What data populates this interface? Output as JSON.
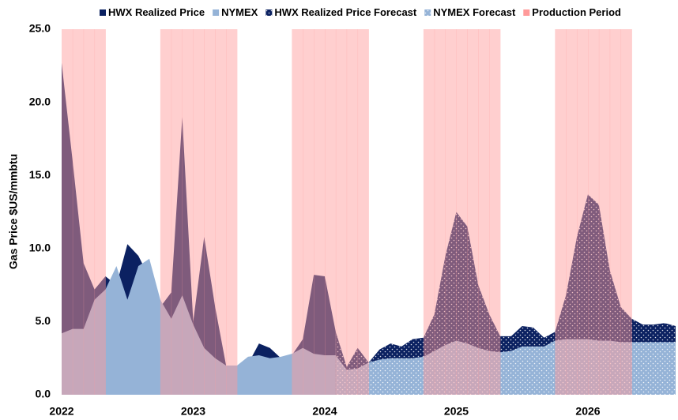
{
  "chart_data": {
    "type": "area",
    "y_label": "Gas Price $US/mmbtu",
    "legend": "top",
    "categories": [
      "2022",
      null,
      null,
      null,
      null,
      null,
      null,
      null,
      null,
      null,
      null,
      null,
      "2023",
      null,
      null,
      null,
      null,
      null,
      null,
      null,
      null,
      null,
      null,
      null,
      "2024",
      null,
      null,
      null,
      null,
      null,
      null,
      null,
      null,
      null,
      null,
      null,
      "2025",
      null,
      null,
      null,
      null,
      null,
      null,
      null,
      null,
      null,
      null,
      null,
      "2026",
      null,
      null,
      null,
      null,
      null,
      null,
      null,
      null
    ],
    "ylim": [
      0,
      25
    ],
    "yticks": [
      {
        "value": 0,
        "label": "0.0"
      },
      {
        "value": 5,
        "label": "5.0"
      },
      {
        "value": 10,
        "label": "10.0"
      },
      {
        "value": 15,
        "label": "15.0"
      },
      {
        "value": 20,
        "label": "20.0"
      },
      {
        "value": 25,
        "label": "25.0"
      }
    ],
    "series": [
      {
        "name": "HWX Realized Price",
        "color": "#0b2161",
        "style": "area",
        "values": [
          22.7,
          16,
          9.0,
          7.2,
          8.1,
          7.5,
          10.3,
          9.5,
          8.0,
          6.0,
          7.0,
          19.0,
          5.0,
          10.8,
          6.0,
          2.0,
          2.0,
          2.1,
          3.5,
          3.2,
          2.5,
          2.7,
          3.8,
          8.2,
          8.1,
          4.3,
          null,
          null,
          null,
          null,
          null,
          null,
          null,
          null,
          null,
          null,
          null,
          null,
          null,
          null,
          null,
          null,
          null,
          null,
          null,
          null,
          null,
          null,
          null,
          null,
          null,
          null,
          null,
          null,
          null,
          null,
          null
        ]
      },
      {
        "name": "NYMEX",
        "color": "#95b3d7",
        "style": "area",
        "values": [
          4.2,
          4.5,
          4.5,
          6.5,
          7.2,
          8.8,
          6.5,
          8.8,
          9.3,
          6.5,
          5.2,
          6.8,
          4.8,
          3.2,
          2.5,
          2.0,
          2.0,
          2.6,
          2.7,
          2.5,
          2.6,
          2.8,
          3.2,
          2.8,
          2.7,
          2.7,
          null,
          null,
          null,
          null,
          null,
          null,
          null,
          null,
          null,
          null,
          null,
          null,
          null,
          null,
          null,
          null,
          null,
          null,
          null,
          null,
          null,
          null,
          null,
          null,
          null,
          null,
          null,
          null,
          null,
          null,
          null
        ]
      },
      {
        "name": "HWX Realized Price Forecast",
        "color": "#0b2161",
        "style": "area",
        "hatch": "dots",
        "values": [
          null,
          null,
          null,
          null,
          null,
          null,
          null,
          null,
          null,
          null,
          null,
          null,
          null,
          null,
          null,
          null,
          null,
          null,
          null,
          null,
          null,
          null,
          null,
          null,
          null,
          4.3,
          1.9,
          3.2,
          2.2,
          3.1,
          3.5,
          3.3,
          3.8,
          3.9,
          5.5,
          9.5,
          12.5,
          11.5,
          7.5,
          5.5,
          4.0,
          4.0,
          4.7,
          4.6,
          3.9,
          4.3,
          6.8,
          10.8,
          13.7,
          13.0,
          8.5,
          6.0,
          5.2,
          4.8,
          4.8,
          4.9,
          4.7
        ]
      },
      {
        "name": "NYMEX Forecast",
        "color": "#95b3d7",
        "style": "area",
        "hatch": "dots",
        "values": [
          null,
          null,
          null,
          null,
          null,
          null,
          null,
          null,
          null,
          null,
          null,
          null,
          null,
          null,
          null,
          null,
          null,
          null,
          null,
          null,
          null,
          null,
          null,
          null,
          null,
          2.7,
          1.7,
          1.8,
          2.2,
          2.4,
          2.5,
          2.5,
          2.5,
          2.6,
          3.0,
          3.4,
          3.7,
          3.5,
          3.2,
          3.0,
          2.9,
          3.0,
          3.3,
          3.3,
          3.3,
          3.7,
          3.8,
          3.8,
          3.8,
          3.7,
          3.7,
          3.6,
          3.6,
          3.6,
          3.6,
          3.6,
          3.6
        ]
      },
      {
        "name": "Production Period",
        "color": "#ff9a9a",
        "style": "band",
        "values": [
          25,
          25,
          25,
          25,
          null,
          null,
          null,
          null,
          null,
          25,
          25,
          25,
          25,
          25,
          25,
          25,
          null,
          null,
          null,
          null,
          null,
          25,
          25,
          25,
          25,
          25,
          25,
          25,
          null,
          null,
          null,
          null,
          null,
          25,
          25,
          25,
          25,
          25,
          25,
          25,
          null,
          null,
          null,
          null,
          null,
          25,
          25,
          25,
          25,
          25,
          25,
          25,
          null,
          null,
          null,
          null,
          null
        ]
      }
    ]
  }
}
